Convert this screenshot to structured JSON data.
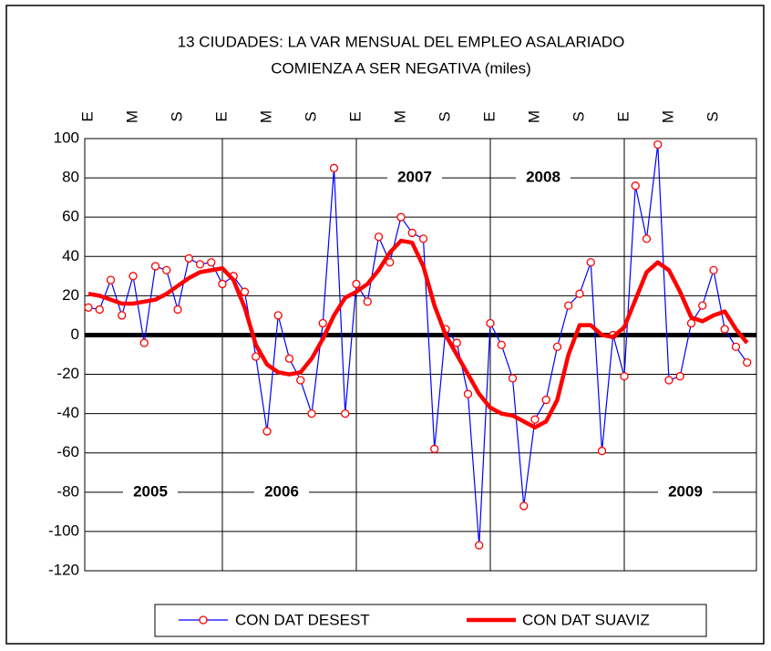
{
  "chart_data": {
    "type": "line",
    "title": [
      "13 CIUDADES: LA VAR MENSUAL DEL EMPLEO ASALARIADO",
      "COMIENZA A SER NEGATIVA (miles)"
    ],
    "categories": [
      "E",
      null,
      null,
      null,
      "M",
      null,
      null,
      null,
      "S",
      null,
      null,
      null,
      "E",
      null,
      null,
      null,
      "M",
      null,
      null,
      null,
      "S",
      null,
      null,
      null,
      "E",
      null,
      null,
      null,
      "M",
      null,
      null,
      null,
      "S",
      null,
      null,
      null,
      "E",
      null,
      null,
      null,
      "M",
      null,
      null,
      null,
      "S",
      null,
      null,
      null,
      "E",
      null,
      null,
      null,
      "M",
      null,
      null,
      null,
      "S",
      null,
      null,
      null
    ],
    "series": [
      {
        "name": "CON DAT DESEST",
        "color": "#0000ff",
        "marker_color": "#ff0000",
        "values": [
          14,
          13,
          28,
          10,
          30,
          -4,
          35,
          33,
          13,
          39,
          36,
          37,
          26,
          30,
          22,
          -11,
          -49,
          10,
          -12,
          -23,
          -40,
          6,
          85,
          -40,
          26,
          17,
          50,
          37,
          60,
          52,
          49,
          -58,
          3,
          -4,
          -30,
          -107,
          6,
          -5,
          -22,
          -87,
          -43,
          -33,
          -6,
          15,
          21,
          37,
          -59,
          0,
          -21,
          76,
          49,
          97,
          -23,
          -21,
          6,
          15,
          33,
          3,
          -6,
          -14
        ]
      },
      {
        "name": "CON DAT SUAVIZ",
        "color": "#ff0000",
        "values": [
          21,
          20,
          18,
          16,
          16,
          17,
          18,
          21,
          25,
          29,
          32,
          33,
          34,
          28,
          14,
          -5,
          -15,
          -19,
          -20,
          -19,
          -12,
          -2,
          10,
          19,
          22,
          26,
          33,
          42,
          48,
          47,
          35,
          15,
          0,
          -10,
          -20,
          -30,
          -37,
          -40,
          -41,
          -44,
          -47,
          -44,
          -33,
          -10,
          5,
          5,
          0,
          -1,
          4,
          18,
          32,
          37,
          33,
          22,
          9,
          7,
          10,
          12,
          3,
          -4
        ]
      }
    ],
    "annotations": [
      "2005",
      "2006",
      "2007",
      "2008",
      "2009"
    ],
    "ylim": [
      -120,
      100
    ],
    "yticks": [
      -120,
      -100,
      -80,
      -60,
      -40,
      -20,
      0,
      20,
      40,
      60,
      80,
      100
    ],
    "grid": true
  }
}
